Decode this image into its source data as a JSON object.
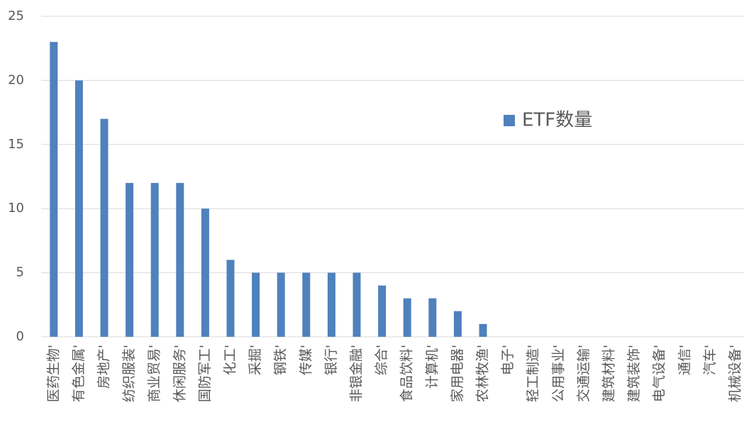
{
  "chart_data": {
    "type": "bar",
    "categories": [
      "医药生物'",
      "有色金属'",
      "房地产'",
      "纺织服装'",
      "商业贸易'",
      "休闲服务'",
      "国防军工'",
      "化工'",
      "采掘'",
      "钢铁'",
      "传媒'",
      "银行'",
      "非银金融'",
      "综合'",
      "食品饮料'",
      "计算机'",
      "家用电器'",
      "农林牧渔'",
      "电子'",
      "轻工制造'",
      "公用事业'",
      "交通运输'",
      "建筑材料'",
      "建筑装饰'",
      "电气设备'",
      "通信'",
      "汽车'",
      "机械设备'"
    ],
    "series": [
      {
        "name": "ETF数量",
        "color": "#4f81bd",
        "values": [
          23,
          20,
          17,
          12,
          12,
          12,
          10,
          6,
          5,
          5,
          5,
          5,
          5,
          4,
          3,
          3,
          2,
          1,
          0,
          0,
          0,
          0,
          0,
          0,
          0,
          0,
          0,
          0
        ]
      }
    ],
    "ylim": [
      0,
      25
    ],
    "yticks": [
      0,
      5,
      10,
      15,
      20,
      25
    ],
    "grid": true,
    "legend": "right"
  }
}
